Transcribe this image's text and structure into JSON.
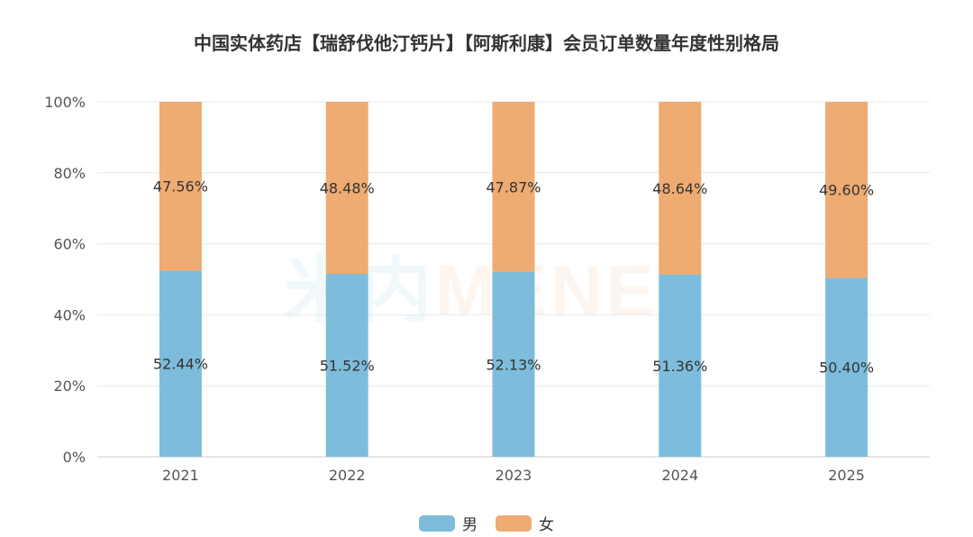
{
  "title": "中国实体药店【瑞舒伐他汀钙片】【阿斯利康】会员订单数量年度性别格局",
  "watermark": {
    "part1": "米内",
    "part2": "MENET"
  },
  "colors": {
    "male": "#7dbddb",
    "female": "#eeab72",
    "grid": "#e8e8e8"
  },
  "legend": [
    {
      "name": "男",
      "color_key": "male"
    },
    {
      "name": "女",
      "color_key": "female"
    }
  ],
  "chart_data": {
    "type": "bar",
    "stacked": true,
    "categories": [
      "2021",
      "2022",
      "2023",
      "2024",
      "2025"
    ],
    "series": [
      {
        "name": "男",
        "values": [
          52.44,
          51.52,
          52.13,
          51.36,
          50.4
        ],
        "labels": [
          "52.44%",
          "51.52%",
          "52.13%",
          "51.36%",
          "50.40%"
        ]
      },
      {
        "name": "女",
        "values": [
          47.56,
          48.48,
          47.87,
          48.64,
          49.6
        ],
        "labels": [
          "47.56%",
          "48.48%",
          "47.87%",
          "48.64%",
          "49.60%"
        ]
      }
    ],
    "yticks": [
      "0%",
      "20%",
      "40%",
      "60%",
      "80%",
      "100%"
    ],
    "ylim": [
      0,
      100
    ],
    "grid": true,
    "legend_position": "bottom"
  }
}
